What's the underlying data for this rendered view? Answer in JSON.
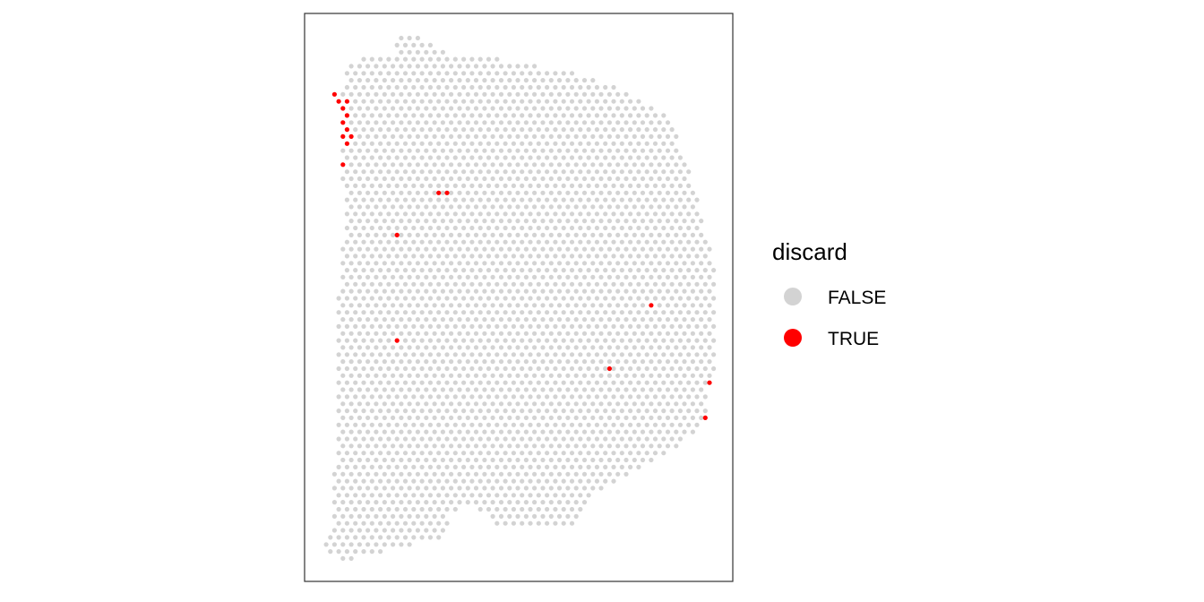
{
  "chart_data": {
    "type": "scatter",
    "title": "",
    "xlabel": "",
    "ylabel": "",
    "grid": false,
    "axes_visible": false,
    "legend": {
      "title": "discard",
      "position": "right",
      "entries": [
        {
          "label": "FALSE",
          "color": "#d3d3d3"
        },
        {
          "label": "TRUE",
          "color": "#ff0000"
        }
      ]
    },
    "series": [
      {
        "name": "FALSE",
        "color": "#d3d3d3",
        "description": "spots forming the tissue outline (all remaining spots in the hexagonal array)"
      },
      {
        "name": "TRUE",
        "color": "#ff0000",
        "points": [
          {
            "col": 3,
            "row": 11
          },
          {
            "col": 4,
            "row": 12
          },
          {
            "col": 6,
            "row": 12
          },
          {
            "col": 5,
            "row": 13
          },
          {
            "col": 6,
            "row": 14
          },
          {
            "col": 5,
            "row": 15
          },
          {
            "col": 6,
            "row": 16
          },
          {
            "col": 5,
            "row": 17
          },
          {
            "col": 7,
            "row": 17
          },
          {
            "col": 6,
            "row": 18
          },
          {
            "col": 5,
            "row": 21
          },
          {
            "col": 28,
            "row": 25
          },
          {
            "col": 30,
            "row": 25
          },
          {
            "col": 18,
            "row": 31
          },
          {
            "col": 18,
            "row": 46
          },
          {
            "col": 79,
            "row": 41
          },
          {
            "col": 69,
            "row": 50
          },
          {
            "col": 93,
            "row": 52
          },
          {
            "col": 92,
            "row": 57
          }
        ]
      }
    ]
  }
}
